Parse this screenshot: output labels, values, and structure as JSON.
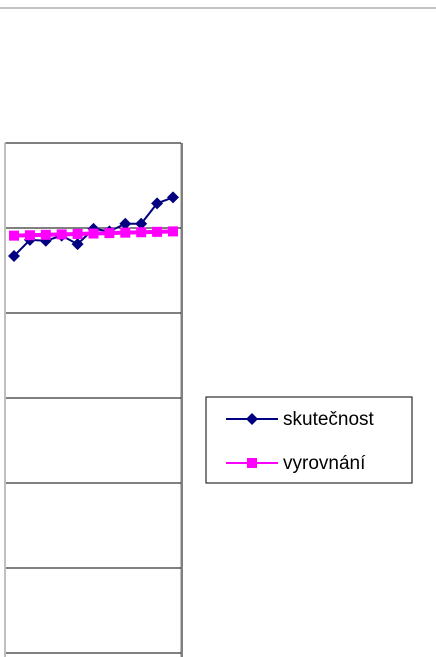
{
  "chart_data": {
    "type": "line",
    "categories": [
      null,
      null,
      null,
      null,
      null,
      null,
      null,
      null,
      null,
      null,
      null
    ],
    "series": [
      {
        "name": "skutečnost",
        "color": "#000080",
        "marker": "diamond",
        "values": [
          4.67,
          4.86,
          4.85,
          4.91,
          4.81,
          4.99,
          4.96,
          5.05,
          5.05,
          5.29,
          5.36
        ]
      },
      {
        "name": "vyrovnání",
        "color": "#ff00ff",
        "marker": "square",
        "values": [
          4.91,
          4.915,
          4.92,
          4.925,
          4.93,
          4.935,
          4.94,
          4.945,
          4.95,
          4.955,
          4.96
        ]
      }
    ],
    "ylim": [
      0,
      6
    ],
    "yticks": [
      0,
      1,
      2,
      3,
      4,
      5,
      6
    ],
    "grid": true,
    "legend": "right"
  }
}
